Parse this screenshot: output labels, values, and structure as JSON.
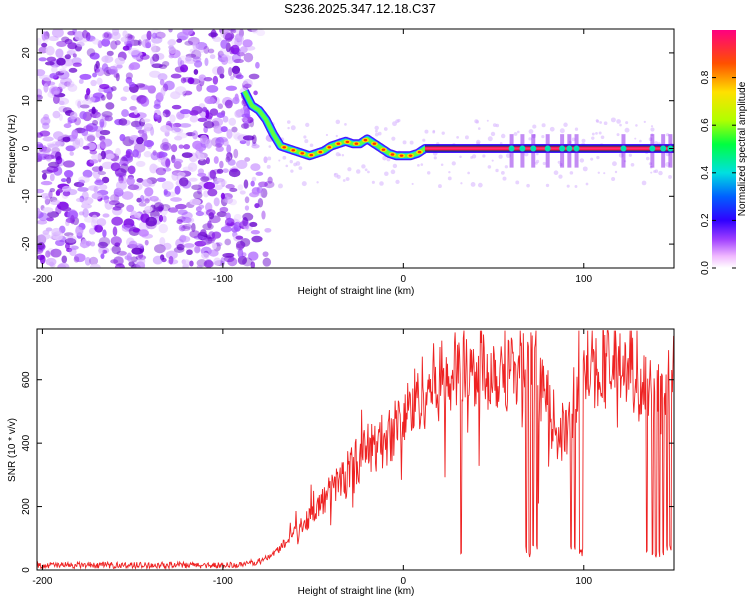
{
  "title": "S236.2025.347.12.18.C37",
  "colors": {
    "purple": "#7a00e6",
    "snr_line": "#ee2222"
  },
  "chart_data": [
    {
      "type": "heatmap",
      "name": "spectrogram",
      "xlabel": "Height of straight line (km)",
      "ylabel": "Frequency (Hz)",
      "xlim": [
        -203,
        150
      ],
      "ylim": [
        -25,
        25
      ],
      "x_ticks": [
        -200,
        -100,
        0,
        100
      ],
      "x_tick_labels": [
        "-200",
        "-100",
        "0",
        "100"
      ],
      "y_ticks": [
        -20,
        -10,
        0,
        10,
        20
      ],
      "y_tick_labels": [
        "-20",
        "-10",
        "0",
        "10",
        "20"
      ],
      "colorbar": {
        "label": "Normalized spectral amplitude",
        "range": [
          0,
          1
        ],
        "ticks": [
          0.0,
          0.2,
          0.4,
          0.6,
          0.8
        ],
        "tick_labels": [
          "0.0",
          "0.2",
          "0.4",
          "0.6",
          "0.8"
        ]
      },
      "ridge": {
        "x": [
          -88,
          -84,
          -80,
          -76,
          -72,
          -68,
          -64,
          -60,
          -56,
          -52,
          -48,
          -44,
          -40,
          -36,
          -32,
          -28,
          -24,
          -20,
          -16,
          -12,
          -8,
          -4,
          0,
          4,
          8,
          12,
          150
        ],
        "y": [
          12,
          9,
          8,
          6,
          3,
          0.5,
          0,
          -0.5,
          -1,
          -1.5,
          -1,
          -0.5,
          0.5,
          1,
          1.5,
          1,
          1,
          2,
          1,
          0,
          -1,
          -1.5,
          -1.5,
          -1.5,
          -1,
          0,
          0
        ]
      },
      "noise_region_x": [
        -203,
        -75
      ]
    },
    {
      "type": "line",
      "name": "snr",
      "xlabel": "Height of straight line (km)",
      "ylabel": "SNR (10 * v/v)",
      "xlim": [
        -203,
        150
      ],
      "ylim": [
        0,
        760
      ],
      "x_ticks": [
        -200,
        -100,
        0,
        100
      ],
      "x_tick_labels": [
        "-200",
        "-100",
        "0",
        "100"
      ],
      "y_ticks": [
        0,
        200,
        400,
        600
      ],
      "y_tick_labels": [
        "0",
        "200",
        "400",
        "600"
      ],
      "envelope": {
        "x": [
          -203,
          -90,
          -78,
          -70,
          -60,
          -50,
          -40,
          -30,
          -20,
          -10,
          0,
          10,
          20,
          30,
          40,
          50,
          60,
          70,
          75,
          80,
          85,
          90,
          95,
          100,
          110,
          120,
          130,
          135,
          140,
          145,
          150
        ],
        "y": [
          15,
          15,
          30,
          60,
          120,
          180,
          250,
          320,
          380,
          410,
          480,
          560,
          600,
          620,
          630,
          635,
          640,
          645,
          560,
          520,
          440,
          430,
          500,
          640,
          650,
          640,
          630,
          560,
          520,
          600,
          630
        ]
      },
      "dropouts_x": [
        32,
        68,
        70,
        72,
        74,
        93,
        95,
        98,
        99,
        135,
        138,
        140,
        142,
        144,
        146,
        148
      ]
    }
  ]
}
